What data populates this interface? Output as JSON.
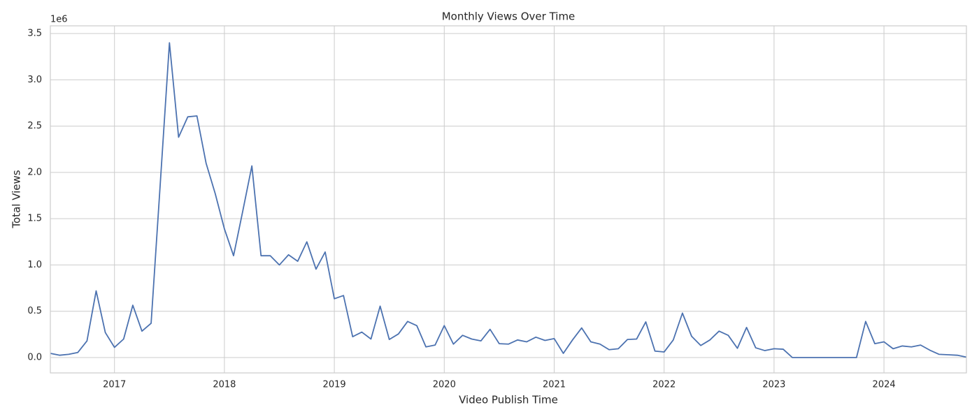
{
  "chart_data": {
    "type": "line",
    "title": "Monthly Views Over Time",
    "xlabel": "Video Publish Time",
    "ylabel": "Total Views",
    "y_offset_label": "1e6",
    "color": "#4c72b0",
    "grid": true,
    "x": [
      2016.4167,
      2016.5,
      2016.5833,
      2016.6667,
      2016.75,
      2016.8333,
      2016.9167,
      2017.0,
      2017.0833,
      2017.1667,
      2017.25,
      2017.3333,
      2017.4167,
      2017.5,
      2017.5833,
      2017.6667,
      2017.75,
      2017.8333,
      2017.9167,
      2018.0,
      2018.0833,
      2018.1667,
      2018.25,
      2018.3333,
      2018.4167,
      2018.5,
      2018.5833,
      2018.6667,
      2018.75,
      2018.8333,
      2018.9167,
      2019.0,
      2019.0833,
      2019.1667,
      2019.25,
      2019.3333,
      2019.4167,
      2019.5,
      2019.5833,
      2019.6667,
      2019.75,
      2019.8333,
      2019.9167,
      2020.0,
      2020.0833,
      2020.1667,
      2020.25,
      2020.3333,
      2020.4167,
      2020.5,
      2020.5833,
      2020.6667,
      2020.75,
      2020.8333,
      2020.9167,
      2021.0,
      2021.0833,
      2021.1667,
      2021.25,
      2021.3333,
      2021.4167,
      2021.5,
      2021.5833,
      2021.6667,
      2021.75,
      2021.8333,
      2021.9167,
      2022.0,
      2022.0833,
      2022.1667,
      2022.25,
      2022.3333,
      2022.4167,
      2022.5,
      2022.5833,
      2022.6667,
      2022.75,
      2022.8333,
      2022.9167,
      2023.0,
      2023.0833,
      2023.1667,
      2023.25,
      2023.3333,
      2023.4167,
      2023.5,
      2023.5833,
      2023.6667,
      2023.75,
      2023.8333,
      2023.9167,
      2024.0,
      2024.0833,
      2024.1667,
      2024.25,
      2024.3333,
      2024.4167,
      2024.5,
      2024.5833,
      2024.6667,
      2024.75
    ],
    "values": [
      0.045,
      0.025,
      0.035,
      0.055,
      0.18,
      0.72,
      0.27,
      0.11,
      0.2,
      0.565,
      0.285,
      0.37,
      1.88,
      3.4,
      2.38,
      2.6,
      2.61,
      2.1,
      1.77,
      1.39,
      1.1,
      1.58,
      2.07,
      1.1,
      1.1,
      1.0,
      1.11,
      1.04,
      1.25,
      0.955,
      1.14,
      0.635,
      0.67,
      0.225,
      0.275,
      0.2,
      0.555,
      0.195,
      0.255,
      0.39,
      0.345,
      0.115,
      0.135,
      0.345,
      0.145,
      0.24,
      0.2,
      0.18,
      0.305,
      0.15,
      0.145,
      0.19,
      0.17,
      0.22,
      0.185,
      0.205,
      0.045,
      0.19,
      0.32,
      0.17,
      0.145,
      0.085,
      0.095,
      0.195,
      0.2,
      0.385,
      0.07,
      0.06,
      0.19,
      0.48,
      0.23,
      0.13,
      0.19,
      0.285,
      0.24,
      0.1,
      0.325,
      0.105,
      0.075,
      0.095,
      0.09,
      0.0,
      0.0,
      0.0,
      0.0,
      0.0,
      0.0,
      0.0,
      0.0,
      0.39,
      0.15,
      0.17,
      0.095,
      0.125,
      0.115,
      0.135,
      0.08,
      0.035,
      0.03,
      0.025,
      0.005
    ],
    "xlim": [
      2016.4167,
      2024.75
    ],
    "xticks": [
      2017,
      2018,
      2019,
      2020,
      2021,
      2022,
      2023,
      2024
    ],
    "ylim": [
      -0.166,
      3.583
    ],
    "yticks": [
      {
        "value": 0,
        "label": "0.0"
      },
      {
        "value": 0.5,
        "label": "0.5"
      },
      {
        "value": 1,
        "label": "1.0"
      },
      {
        "value": 1.5,
        "label": "1.5"
      },
      {
        "value": 2,
        "label": "2.0"
      },
      {
        "value": 2.5,
        "label": "2.5"
      },
      {
        "value": 3,
        "label": "3.0"
      },
      {
        "value": 3.5,
        "label": "3.5"
      }
    ]
  }
}
